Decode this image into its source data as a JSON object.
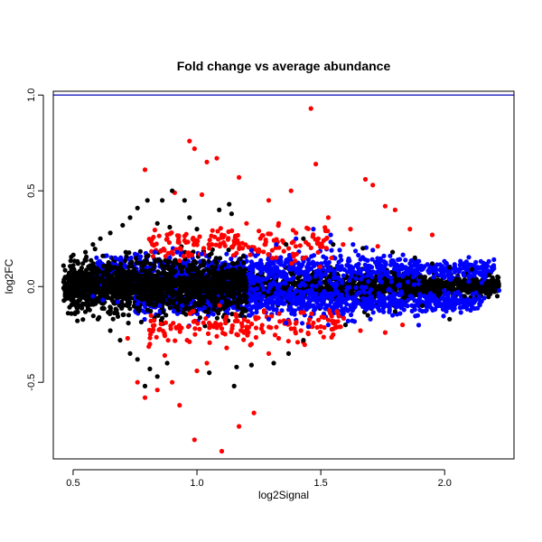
{
  "chart_data": {
    "type": "scatter",
    "title": "Fold change vs average abundance",
    "xlabel": "log2Signal",
    "ylabel": "log2FC",
    "xlim": [
      0.42,
      2.28
    ],
    "ylim": [
      -0.9,
      1.02
    ],
    "x_ticks": [
      0.5,
      1.0,
      1.5,
      2.0
    ],
    "x_tick_labels": [
      "0.5",
      "1.0",
      "1.5",
      "2.0"
    ],
    "y_ticks": [
      -0.5,
      0.0,
      0.5,
      1.0
    ],
    "y_tick_labels": [
      "-0.5",
      "0.0",
      "0.5",
      "1.0"
    ],
    "reference_line": {
      "y": 1.0,
      "color": "#3030c0"
    },
    "grid": false,
    "legend": "none",
    "colors": {
      "black": "#000000",
      "blue": "#0000ff",
      "red": "#ff0000"
    },
    "series": [
      {
        "color": "#ff0000",
        "points": [
          [
            1.46,
            0.93
          ],
          [
            0.97,
            0.76
          ],
          [
            1.08,
            0.67
          ],
          [
            1.04,
            0.65
          ],
          [
            0.99,
            0.72
          ],
          [
            1.17,
            0.57
          ],
          [
            1.48,
            0.64
          ],
          [
            0.79,
            0.61
          ],
          [
            1.68,
            0.56
          ],
          [
            1.71,
            0.53
          ],
          [
            1.76,
            0.42
          ],
          [
            1.38,
            0.5
          ],
          [
            1.8,
            0.4
          ],
          [
            0.91,
            0.49
          ],
          [
            1.02,
            0.48
          ],
          [
            1.29,
            0.45
          ],
          [
            1.53,
            0.36
          ],
          [
            1.62,
            0.3
          ],
          [
            1.86,
            0.3
          ],
          [
            1.95,
            0.27
          ],
          [
            1.2,
            0.33
          ],
          [
            1.33,
            0.33
          ],
          [
            1.4,
            0.28
          ],
          [
            0.88,
            0.25
          ],
          [
            1.1,
            0.27
          ],
          [
            1.25,
            0.29
          ],
          [
            1.49,
            0.25
          ],
          [
            1.59,
            0.22
          ],
          [
            1.73,
            0.21
          ],
          [
            0.82,
            0.22
          ],
          [
            0.95,
            0.24
          ],
          [
            1.35,
            0.23
          ],
          [
            1.45,
            0.22
          ],
          [
            1.15,
            0.22
          ],
          [
            1.05,
            0.2
          ],
          [
            0.79,
            -0.58
          ],
          [
            0.99,
            -0.8
          ],
          [
            1.1,
            -0.86
          ],
          [
            1.17,
            -0.73
          ],
          [
            1.23,
            -0.66
          ],
          [
            0.93,
            -0.62
          ],
          [
            0.9,
            -0.5
          ],
          [
            0.76,
            -0.5
          ],
          [
            0.84,
            -0.54
          ],
          [
            1.0,
            -0.44
          ],
          [
            1.04,
            -0.4
          ],
          [
            1.29,
            -0.35
          ],
          [
            1.12,
            -0.32
          ],
          [
            1.22,
            -0.3
          ],
          [
            0.87,
            -0.36
          ],
          [
            0.96,
            -0.28
          ],
          [
            1.33,
            -0.27
          ],
          [
            1.42,
            -0.23
          ],
          [
            1.55,
            -0.19
          ],
          [
            1.66,
            -0.23
          ],
          [
            1.76,
            -0.24
          ],
          [
            1.83,
            -0.2
          ],
          [
            1.26,
            -0.22
          ],
          [
            1.19,
            -0.24
          ],
          [
            1.08,
            -0.26
          ],
          [
            0.81,
            -0.3
          ],
          [
            0.72,
            -0.27
          ],
          [
            1.38,
            -0.22
          ],
          [
            1.58,
            -0.21
          ],
          [
            1.47,
            -0.19
          ]
        ]
      },
      {
        "color": "#000000",
        "points": [
          [
            0.9,
            0.5
          ],
          [
            0.86,
            0.45
          ],
          [
            0.76,
            0.41
          ],
          [
            0.8,
            0.45
          ],
          [
            0.73,
            0.36
          ],
          [
            0.7,
            0.32
          ],
          [
            0.65,
            0.28
          ],
          [
            0.61,
            0.25
          ],
          [
            0.58,
            0.22
          ],
          [
            0.55,
            0.18
          ],
          [
            0.52,
            0.12
          ],
          [
            0.49,
            0.06
          ],
          [
            0.47,
            0.01
          ],
          [
            0.51,
            -0.03
          ],
          [
            0.56,
            -0.12
          ],
          [
            0.6,
            -0.17
          ],
          [
            0.65,
            -0.23
          ],
          [
            0.69,
            -0.28
          ],
          [
            0.73,
            -0.35
          ],
          [
            0.76,
            -0.38
          ],
          [
            0.81,
            -0.43
          ],
          [
            0.84,
            -0.47
          ],
          [
            0.79,
            -0.52
          ],
          [
            0.88,
            -0.4
          ],
          [
            1.05,
            -0.45
          ],
          [
            1.15,
            -0.52
          ],
          [
            1.16,
            -0.42
          ],
          [
            1.22,
            -0.41
          ],
          [
            1.31,
            -0.4
          ],
          [
            1.37,
            -0.35
          ],
          [
            1.43,
            -0.28
          ],
          [
            1.6,
            -0.2
          ],
          [
            1.69,
            -0.15
          ],
          [
            1.8,
            -0.13
          ],
          [
            1.91,
            -0.1
          ],
          [
            2.02,
            -0.17
          ],
          [
            2.08,
            -0.05
          ],
          [
            2.13,
            0.02
          ],
          [
            2.18,
            0.06
          ],
          [
            2.11,
            0.09
          ],
          [
            2.02,
            0.1
          ],
          [
            1.95,
            0.12
          ],
          [
            1.88,
            0.15
          ],
          [
            1.79,
            0.18
          ],
          [
            1.67,
            0.2
          ],
          [
            1.55,
            0.22
          ],
          [
            1.43,
            0.25
          ],
          [
            1.36,
            0.22
          ],
          [
            1.09,
            0.4
          ],
          [
            1.13,
            0.43
          ],
          [
            1.14,
            0.38
          ],
          [
            0.95,
            0.45
          ],
          [
            0.97,
            0.36
          ],
          [
            0.84,
            0.33
          ],
          [
            0.89,
            0.31
          ],
          [
            1.0,
            0.3
          ],
          [
            0.62,
            0.16
          ],
          [
            0.67,
            0.1
          ],
          [
            0.72,
            -0.1
          ],
          [
            0.62,
            -0.08
          ],
          [
            0.56,
            0.02
          ],
          [
            2.05,
            0.04
          ],
          [
            2.17,
            -0.01
          ],
          [
            1.98,
            -0.04
          ],
          [
            1.9,
            0.05
          ]
        ]
      },
      {
        "color": "#0000ff",
        "points": [
          [
            1.47,
            0.3
          ],
          [
            1.54,
            0.27
          ],
          [
            1.63,
            0.22
          ],
          [
            1.71,
            0.19
          ],
          [
            1.78,
            0.16
          ],
          [
            1.86,
            0.12
          ],
          [
            1.94,
            0.09
          ],
          [
            2.02,
            0.07
          ],
          [
            2.1,
            0.05
          ],
          [
            2.15,
            0.02
          ],
          [
            2.22,
            -0.02
          ],
          [
            2.16,
            -0.06
          ],
          [
            2.06,
            -0.08
          ],
          [
            1.97,
            -0.1
          ],
          [
            1.88,
            -0.12
          ],
          [
            1.79,
            -0.15
          ],
          [
            1.7,
            -0.17
          ],
          [
            1.61,
            -0.18
          ],
          [
            1.53,
            -0.2
          ],
          [
            1.45,
            -0.21
          ],
          [
            1.36,
            -0.19
          ],
          [
            1.29,
            -0.17
          ],
          [
            1.21,
            -0.15
          ],
          [
            1.12,
            -0.13
          ],
          [
            1.03,
            -0.11
          ],
          [
            0.94,
            -0.1
          ],
          [
            0.85,
            -0.1
          ],
          [
            0.76,
            -0.09
          ],
          [
            0.68,
            -0.08
          ],
          [
            0.62,
            -0.07
          ],
          [
            0.58,
            -0.05
          ],
          [
            0.6,
            0.12
          ],
          [
            0.67,
            0.15
          ],
          [
            0.75,
            0.17
          ],
          [
            0.83,
            0.18
          ],
          [
            0.92,
            0.18
          ],
          [
            1.02,
            0.17
          ],
          [
            1.12,
            0.17
          ],
          [
            1.22,
            0.19
          ],
          [
            1.32,
            0.22
          ],
          [
            1.4,
            0.25
          ],
          [
            1.25,
            0.12
          ],
          [
            1.45,
            0.14
          ],
          [
            1.65,
            0.1
          ],
          [
            1.85,
            0.08
          ],
          [
            1.1,
            -0.08
          ],
          [
            1.35,
            -0.09
          ],
          [
            1.58,
            -0.1
          ],
          [
            1.8,
            -0.07
          ],
          [
            2.0,
            -0.04
          ]
        ]
      }
    ],
    "point_clouds": [
      {
        "color": "#000000",
        "x_range": [
          0.46,
          2.22
        ],
        "center": 0.0,
        "spread": 0.04,
        "count": 2200
      },
      {
        "color": "#0000ff",
        "x_range": [
          0.58,
          2.2
        ],
        "center": 0.09,
        "spread": 0.04,
        "count": 900
      },
      {
        "color": "#0000ff",
        "x_range": [
          0.75,
          2.15
        ],
        "center": -0.08,
        "spread": 0.04,
        "count": 900
      },
      {
        "color": "#000000",
        "x_range": [
          0.48,
          1.2
        ],
        "center": 0.0,
        "spread": 0.07,
        "count": 1300
      },
      {
        "color": "#ff0000",
        "x_range": [
          0.8,
          1.55
        ],
        "center": 0.22,
        "spread": 0.04,
        "count": 160
      },
      {
        "color": "#ff0000",
        "x_range": [
          0.8,
          1.6
        ],
        "center": -0.21,
        "spread": 0.04,
        "count": 160
      }
    ]
  }
}
